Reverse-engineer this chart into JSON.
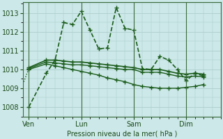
{
  "bg_color": "#cce8e8",
  "grid_color": "#a8c8c8",
  "line_color": "#1a5c1a",
  "xlabel": "Pression niveau de la mer( hPa )",
  "ylim": [
    1007.5,
    1013.6
  ],
  "yticks": [
    1008,
    1009,
    1010,
    1011,
    1012,
    1013
  ],
  "day_labels": [
    "Ven",
    "Lun",
    "Sam",
    "Dim"
  ],
  "day_positions": [
    0,
    36,
    72,
    108
  ],
  "xlim": [
    -4,
    132
  ],
  "series": [
    {
      "x": [
        0,
        12,
        18,
        24,
        30,
        36,
        42,
        48,
        54,
        60,
        66,
        72,
        78,
        84,
        90,
        96,
        102,
        108,
        114,
        120
      ],
      "y": [
        1008.0,
        1009.8,
        1010.5,
        1012.5,
        1012.4,
        1013.1,
        1012.1,
        1011.1,
        1011.15,
        1013.3,
        1012.2,
        1012.1,
        1010.05,
        1010.0,
        1010.7,
        1010.5,
        1010.0,
        1009.4,
        1009.8,
        1009.65
      ],
      "linestyle": "--",
      "marker": "+",
      "markersize": 5,
      "linewidth": 1.2
    },
    {
      "x": [
        0,
        12,
        18,
        24,
        30,
        36,
        42,
        48,
        54,
        60,
        66,
        72,
        78,
        84,
        90,
        96,
        102,
        108,
        114,
        120
      ],
      "y": [
        1010.1,
        1010.5,
        1010.5,
        1010.45,
        1010.4,
        1010.4,
        1010.35,
        1010.3,
        1010.25,
        1010.2,
        1010.15,
        1010.1,
        1010.0,
        1010.0,
        1010.0,
        1009.9,
        1009.8,
        1009.75,
        1009.8,
        1009.75
      ],
      "linestyle": "-",
      "marker": "+",
      "markersize": 4,
      "linewidth": 1.2
    },
    {
      "x": [
        0,
        12,
        18,
        24,
        30,
        36,
        42,
        48,
        54,
        60,
        66,
        72,
        78,
        84,
        90,
        96,
        102,
        108,
        114,
        120
      ],
      "y": [
        1010.05,
        1010.4,
        1010.35,
        1010.3,
        1010.25,
        1010.25,
        1010.2,
        1010.15,
        1010.1,
        1010.05,
        1010.0,
        1010.0,
        1009.85,
        1009.85,
        1009.85,
        1009.75,
        1009.65,
        1009.6,
        1009.65,
        1009.6
      ],
      "linestyle": "-",
      "marker": "+",
      "markersize": 4,
      "linewidth": 1.0
    },
    {
      "x": [
        0,
        12,
        18,
        24,
        30,
        36,
        42,
        48,
        54,
        60,
        66,
        72,
        78,
        84,
        90,
        96,
        102,
        108,
        114,
        120
      ],
      "y": [
        1010.0,
        1010.3,
        1010.2,
        1010.1,
        1010.0,
        1009.9,
        1009.8,
        1009.7,
        1009.55,
        1009.45,
        1009.35,
        1009.2,
        1009.1,
        1009.05,
        1009.0,
        1009.0,
        1009.0,
        1009.05,
        1009.1,
        1009.2
      ],
      "linestyle": "-",
      "marker": "+",
      "markersize": 4,
      "linewidth": 1.0
    }
  ],
  "intro_series": {
    "x": [
      -12,
      -6,
      0
    ],
    "y": [
      1008.0,
      1008.8,
      1010.05
    ],
    "linestyle": ":",
    "marker": "+",
    "markersize": 4,
    "linewidth": 1.0
  }
}
